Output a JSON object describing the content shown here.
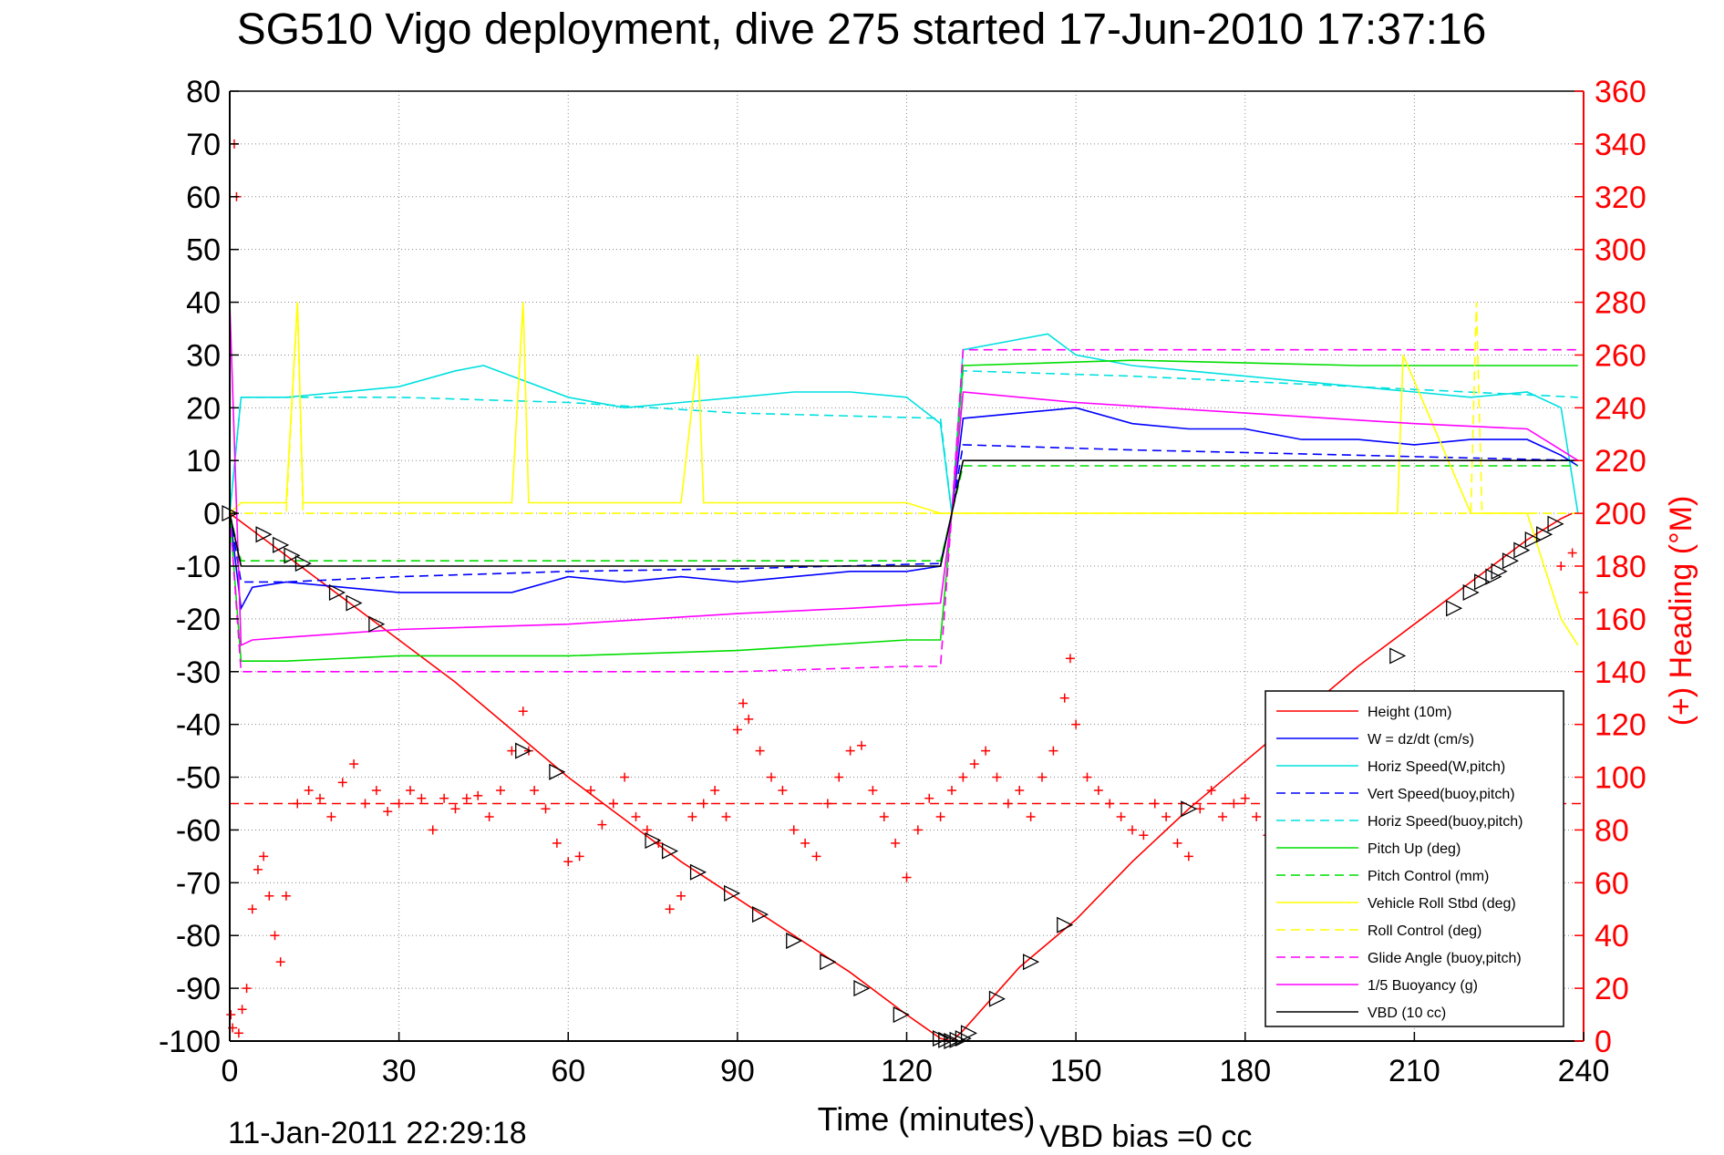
{
  "chart_data": {
    "type": "line",
    "title": "SG510 Vigo deployment, dive 275 started 17-Jun-2010 17:37:16",
    "xlabel": "Time (minutes)",
    "ylabel": "",
    "ylabel_right": "(+) Heading (°M)",
    "xlim": [
      0,
      240
    ],
    "ylim": [
      -100,
      80
    ],
    "ylim_right": [
      0,
      360
    ],
    "x_ticks": [
      0,
      30,
      60,
      90,
      120,
      150,
      180,
      210,
      240
    ],
    "y_ticks": [
      80,
      70,
      60,
      50,
      40,
      30,
      20,
      10,
      0,
      -10,
      -20,
      -30,
      -40,
      -50,
      -60,
      -70,
      -80,
      -90,
      -100
    ],
    "y_ticks_right": [
      360,
      340,
      320,
      300,
      280,
      260,
      240,
      220,
      200,
      180,
      160,
      140,
      120,
      100,
      80,
      60,
      40,
      20,
      0
    ],
    "grid": true,
    "legend_position": "bottom-right",
    "series": [
      {
        "name": "Height (10m)",
        "color": "#ff0000",
        "dash": "solid",
        "x": [
          0,
          10,
          20,
          30,
          40,
          50,
          60,
          70,
          80,
          90,
          100,
          110,
          120,
          126,
          128,
          130,
          140,
          150,
          160,
          170,
          180,
          190,
          200,
          210,
          220,
          230,
          236,
          238
        ],
        "y": [
          0,
          -8,
          -16,
          -24,
          -32,
          -41,
          -50,
          -58,
          -66,
          -73,
          -80,
          -87,
          -95,
          -99.5,
          -100,
          -98,
          -86,
          -77,
          -66,
          -56,
          -47,
          -38,
          -29,
          -21,
          -13,
          -5,
          -1,
          0
        ]
      },
      {
        "name": "W = dz/dt (cm/s)",
        "color": "#0000ff",
        "dash": "solid",
        "x": [
          0,
          2,
          4,
          10,
          20,
          30,
          40,
          50,
          60,
          70,
          80,
          90,
          100,
          110,
          120,
          126,
          128,
          130,
          140,
          150,
          160,
          170,
          180,
          190,
          200,
          210,
          220,
          230,
          236,
          239
        ],
        "y": [
          0,
          -18,
          -14,
          -13,
          -14,
          -15,
          -15,
          -15,
          -12,
          -13,
          -12,
          -13,
          -12,
          -11,
          -11,
          -10,
          0,
          18,
          19,
          20,
          17,
          16,
          16,
          14,
          14,
          13,
          14,
          14,
          11,
          9
        ]
      },
      {
        "name": "Horiz Speed(W,pitch)",
        "color": "#00e0e0",
        "dash": "solid",
        "x": [
          0,
          2,
          4,
          10,
          20,
          30,
          40,
          45,
          50,
          60,
          70,
          80,
          90,
          100,
          110,
          120,
          126,
          128,
          130,
          140,
          145,
          150,
          160,
          170,
          180,
          190,
          200,
          210,
          220,
          230,
          236,
          239
        ],
        "y": [
          0,
          22,
          22,
          22,
          23,
          24,
          27,
          28,
          26,
          22,
          20,
          21,
          22,
          23,
          23,
          22,
          17,
          0,
          31,
          33,
          34,
          30,
          28,
          27,
          26,
          25,
          24,
          23,
          22,
          23,
          20,
          0
        ]
      },
      {
        "name": "Vert Speed(buoy,pitch)",
        "color": "#0000ff",
        "dash": "dashed",
        "x": [
          0,
          2,
          10,
          30,
          60,
          90,
          126,
          128,
          130,
          160,
          200,
          239
        ],
        "y": [
          0,
          -13,
          -13,
          -12,
          -11,
          -10.5,
          -9.5,
          0,
          13,
          12,
          11,
          10
        ]
      },
      {
        "name": "Horiz Speed(buoy,pitch)",
        "color": "#00e0e0",
        "dash": "dashed",
        "x": [
          0,
          2,
          10,
          30,
          60,
          90,
          126,
          128,
          130,
          160,
          200,
          239
        ],
        "y": [
          0,
          22,
          22,
          22,
          21,
          19,
          18,
          0,
          27,
          26,
          24,
          22
        ]
      },
      {
        "name": "Pitch Up (deg)",
        "color": "#00dd00",
        "dash": "solid",
        "x": [
          0,
          2,
          10,
          30,
          60,
          90,
          120,
          126,
          128,
          130,
          160,
          200,
          230,
          239
        ],
        "y": [
          0,
          -28,
          -28,
          -27,
          -27,
          -26,
          -24,
          -24,
          0,
          28,
          29,
          28,
          28,
          28
        ]
      },
      {
        "name": "Pitch Control (mm)",
        "color": "#00dd00",
        "dash": "dashed",
        "x": [
          0,
          2,
          10,
          30,
          60,
          90,
          126,
          128,
          130,
          160,
          200,
          239
        ],
        "y": [
          0,
          -9,
          -9,
          -9,
          -9,
          -9,
          -9,
          0,
          9,
          9,
          9,
          9
        ]
      },
      {
        "name": "Vehicle Roll Stbd (deg)",
        "color": "#ffff00",
        "dash": "solid",
        "x": [
          0,
          2,
          10,
          12,
          13,
          20,
          30,
          50,
          52,
          53,
          60,
          80,
          83,
          84,
          100,
          120,
          126,
          128,
          130,
          150,
          170,
          200,
          207,
          208,
          220,
          230,
          236,
          239
        ],
        "y": [
          0,
          2,
          2,
          40,
          2,
          2,
          2,
          2,
          40,
          2,
          2,
          2,
          30,
          2,
          2,
          2,
          0,
          0,
          0,
          0,
          0,
          0,
          0,
          30,
          0,
          0,
          -20,
          -25
        ]
      },
      {
        "name": "Roll Control (deg)",
        "color": "#ffff00",
        "dash": "dashed",
        "x": [
          0,
          2,
          10,
          12,
          13,
          20,
          60,
          90,
          120,
          126,
          128,
          130,
          200,
          220,
          221,
          222,
          239
        ],
        "y": [
          0,
          0,
          0,
          40,
          0,
          0,
          0,
          0,
          0,
          0,
          0,
          0,
          0,
          0,
          40,
          0,
          0
        ]
      },
      {
        "name": "Glide Angle (buoy,pitch)",
        "color": "#ff00ff",
        "dash": "dashed",
        "x": [
          0,
          2,
          10,
          30,
          60,
          90,
          120,
          126,
          128,
          130,
          160,
          200,
          230,
          239
        ],
        "y": [
          0,
          -30,
          -30,
          -30,
          -30,
          -30,
          -29,
          -29,
          0,
          31,
          31,
          31,
          31,
          31
        ]
      },
      {
        "name": "1/5 Buoyancy (g)",
        "color": "#ff00ff",
        "dash": "solid",
        "x": [
          0,
          2,
          4,
          10,
          30,
          60,
          90,
          110,
          126,
          128,
          130,
          150,
          180,
          210,
          230,
          236,
          239
        ],
        "y": [
          40,
          -25,
          -24,
          -23.5,
          -22,
          -21,
          -19,
          -18,
          -17,
          0,
          23,
          21,
          19,
          17,
          16,
          12,
          10
        ]
      },
      {
        "name": "VBD (10 cc)",
        "color": "#000000",
        "dash": "solid",
        "x": [
          0,
          2,
          10,
          60,
          126,
          128,
          130,
          239
        ],
        "y": [
          0,
          -10,
          -10,
          -10,
          -10,
          0,
          10,
          10
        ]
      }
    ],
    "heading_markers": {
      "name": "(+) Heading",
      "color": "#ff0000",
      "marker": "+",
      "reference_line_deg": 90,
      "x": [
        0.2,
        0.5,
        0.8,
        1.2,
        1.6,
        2.2,
        3,
        4,
        5,
        6,
        7,
        8,
        9,
        10,
        12,
        14,
        16,
        18,
        20,
        22,
        24,
        26,
        28,
        30,
        32,
        34,
        36,
        38,
        40,
        42,
        44,
        46,
        48,
        50,
        52,
        53,
        54,
        56,
        58,
        60,
        62,
        64,
        66,
        68,
        70,
        72,
        74,
        76,
        78,
        80,
        82,
        84,
        86,
        88,
        90,
        91,
        92,
        94,
        96,
        98,
        100,
        102,
        104,
        106,
        108,
        110,
        112,
        114,
        116,
        118,
        120,
        122,
        124,
        126,
        128,
        130,
        132,
        134,
        136,
        138,
        140,
        142,
        144,
        146,
        148,
        149,
        150,
        152,
        154,
        156,
        158,
        160,
        162,
        164,
        166,
        168,
        170,
        172,
        174,
        176,
        178,
        180,
        182,
        184,
        186,
        188,
        190,
        192,
        194,
        196,
        198,
        200,
        202,
        204,
        206,
        208,
        210,
        212,
        214,
        216,
        218,
        220,
        222,
        224,
        226,
        228,
        230,
        232,
        234,
        236,
        238,
        240
      ],
      "y": [
        10,
        5,
        340,
        320,
        3,
        12,
        20,
        50,
        65,
        70,
        55,
        40,
        30,
        55,
        90,
        95,
        92,
        85,
        98,
        105,
        90,
        95,
        87,
        90,
        95,
        92,
        80,
        92,
        88,
        92,
        93,
        85,
        95,
        110,
        125,
        110,
        95,
        88,
        75,
        68,
        70,
        95,
        82,
        90,
        100,
        85,
        80,
        75,
        50,
        55,
        85,
        90,
        95,
        85,
        118,
        128,
        122,
        110,
        100,
        95,
        80,
        75,
        70,
        90,
        100,
        110,
        112,
        95,
        85,
        75,
        62,
        80,
        92,
        85,
        95,
        100,
        105,
        110,
        100,
        90,
        95,
        85,
        100,
        110,
        130,
        145,
        120,
        100,
        95,
        90,
        85,
        80,
        78,
        90,
        85,
        75,
        70,
        88,
        95,
        85,
        90,
        92,
        85,
        78,
        90,
        100,
        95,
        88,
        92,
        85,
        100,
        95,
        88,
        92,
        80,
        85,
        92,
        90,
        88,
        95,
        90,
        85,
        92,
        90,
        88,
        95,
        100,
        110,
        130,
        180,
        185,
        170
      ]
    },
    "depth_markers": {
      "color": "#000000",
      "marker": "triangle",
      "x": [
        0,
        6,
        9,
        11,
        13,
        19,
        22,
        26,
        52,
        58,
        75,
        78,
        83,
        89,
        94,
        100,
        106,
        112,
        119,
        126,
        127,
        128,
        129,
        130,
        131,
        136,
        142,
        148,
        170,
        207,
        217,
        220,
        222,
        224,
        225,
        227,
        229,
        231,
        233,
        235
      ],
      "y": [
        0,
        -4,
        -6,
        -8,
        -9.5,
        -15,
        -17,
        -21,
        -45,
        -49,
        -62,
        -64,
        -68,
        -72,
        -76,
        -81,
        -85,
        -90,
        -95,
        -99.5,
        -99.8,
        -100,
        -99.8,
        -99.5,
        -98.5,
        -92,
        -85,
        -78,
        -56,
        -27,
        -18,
        -15,
        -13,
        -12,
        -11,
        -9,
        -7,
        -5,
        -4,
        -2
      ]
    },
    "legend_entries": [
      "Height (10m)",
      "W = dz/dt (cm/s)",
      "Horiz Speed(W,pitch)",
      "Vert Speed(buoy,pitch)",
      "Horiz Speed(buoy,pitch)",
      "Pitch Up (deg)",
      "Pitch Control (mm)",
      "Vehicle Roll Stbd (deg)",
      "Roll Control (deg)",
      "Glide Angle (buoy,pitch)",
      "1/5 Buoyancy (g)",
      "VBD (10 cc)"
    ]
  },
  "footer": {
    "timestamp": "11-Jan-2011 22:29:18",
    "vbd_bias": "VBD bias =0 cc"
  }
}
